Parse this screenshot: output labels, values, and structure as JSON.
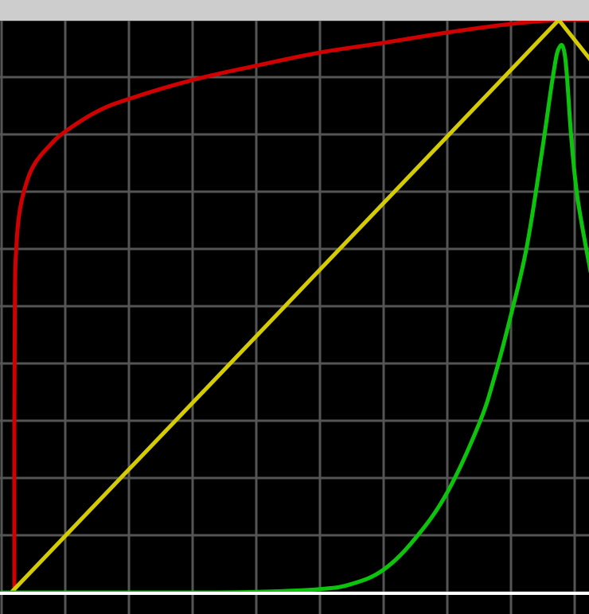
{
  "window": {
    "title": ""
  },
  "chart_data": {
    "type": "line",
    "title": "",
    "xlabel": "",
    "ylabel": "",
    "grid": true,
    "background": "#000000",
    "grid_color": "#555555",
    "baseline_color": "#ffffff",
    "xlim": [
      0,
      9.25
    ],
    "ylim": [
      0,
      10
    ],
    "series": [
      {
        "color": "#d10000",
        "points": [
          [
            0.2,
            0.0
          ],
          [
            0.2,
            3.0
          ],
          [
            0.21,
            5.3
          ],
          [
            0.23,
            6.0
          ],
          [
            0.27,
            6.55
          ],
          [
            0.35,
            7.0
          ],
          [
            0.5,
            7.45
          ],
          [
            0.75,
            7.8
          ],
          [
            1.0,
            8.05
          ],
          [
            1.5,
            8.4
          ],
          [
            2.0,
            8.62
          ],
          [
            3.0,
            8.95
          ],
          [
            4.0,
            9.2
          ],
          [
            5.0,
            9.43
          ],
          [
            6.0,
            9.6
          ],
          [
            7.0,
            9.78
          ],
          [
            8.0,
            9.93
          ],
          [
            8.75,
            10.0
          ],
          [
            9.25,
            10.0
          ]
        ]
      },
      {
        "color": "#d4cc00",
        "points": [
          [
            0.15,
            0.0
          ],
          [
            8.75,
            10.0
          ],
          [
            9.25,
            9.3
          ]
        ]
      },
      {
        "color": "#0cc40c",
        "points": [
          [
            0.0,
            0.0
          ],
          [
            3.0,
            0.0
          ],
          [
            4.0,
            0.01
          ],
          [
            5.0,
            0.06
          ],
          [
            5.5,
            0.15
          ],
          [
            6.0,
            0.4
          ],
          [
            6.5,
            0.95
          ],
          [
            7.0,
            1.75
          ],
          [
            7.5,
            2.95
          ],
          [
            7.75,
            3.8
          ],
          [
            8.0,
            4.85
          ],
          [
            8.25,
            6.05
          ],
          [
            8.5,
            7.8
          ],
          [
            8.65,
            8.95
          ],
          [
            8.75,
            9.5
          ],
          [
            8.85,
            9.35
          ],
          [
            8.95,
            7.9
          ],
          [
            9.05,
            6.85
          ],
          [
            9.25,
            5.6
          ]
        ]
      }
    ]
  }
}
